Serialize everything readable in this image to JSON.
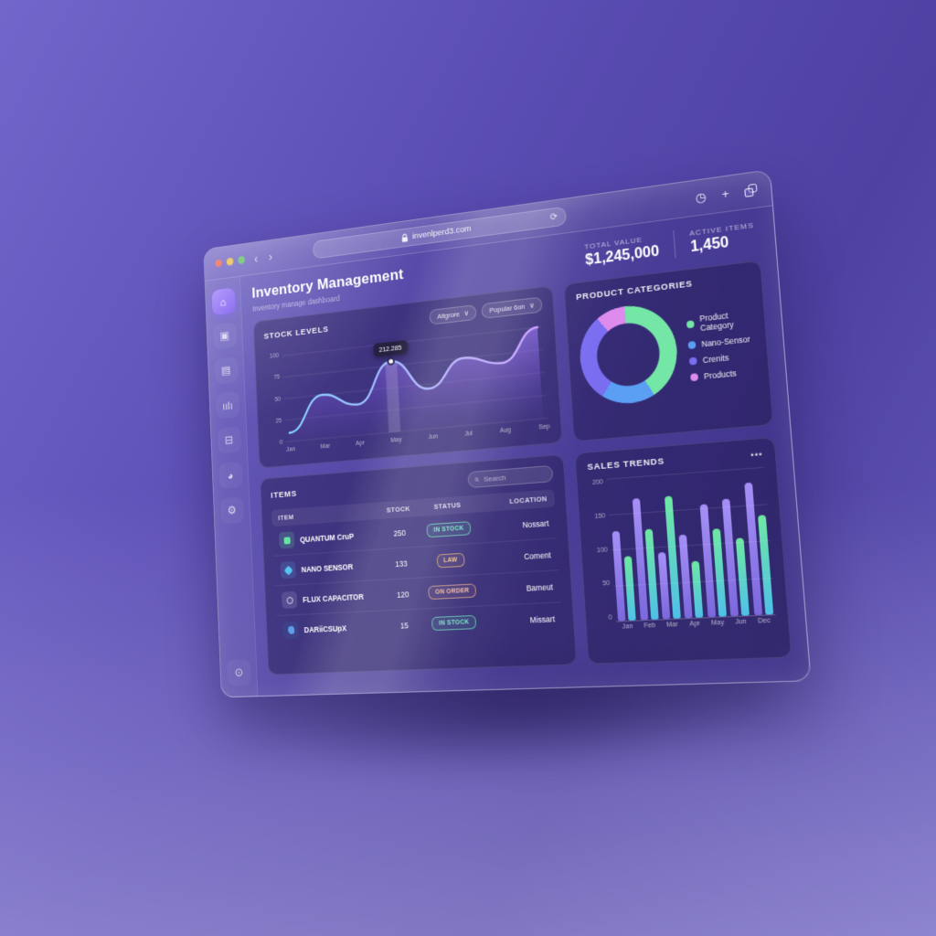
{
  "colors": {
    "accent_purple": "#8b5cf6",
    "bar_purple": "#8d7bea",
    "bar_green": "#6fe3a5",
    "line_blue": "#86d3ff",
    "line_violet": "#c79bff",
    "badge_in_stock": "#7aeac6",
    "badge_low": "#f2c184",
    "badge_on_order": "#f2b9a6"
  },
  "glyphs": {
    "back": "‹",
    "forward": "›",
    "reload": "⟳",
    "plus": "+",
    "history": "◷",
    "chevron_down": "∨",
    "menu": "•••"
  },
  "browser": {
    "url": "invenlperd3.com"
  },
  "sidebar": {
    "items": [
      {
        "name": "home",
        "icon": "home-icon",
        "glyph": "⌂",
        "active": true
      },
      {
        "name": "inventory",
        "icon": "box-icon",
        "glyph": "▣",
        "active": false
      },
      {
        "name": "orders",
        "icon": "clipboard-icon",
        "glyph": "▤",
        "active": false
      },
      {
        "name": "analytics",
        "icon": "bar-chart-icon",
        "glyph": "ıılı",
        "active": false
      },
      {
        "name": "files",
        "icon": "folder-icon",
        "glyph": "⊟",
        "active": false
      },
      {
        "name": "reports",
        "icon": "pie-chart-icon",
        "glyph": "◕",
        "active": false
      },
      {
        "name": "settings",
        "icon": "gear-icon",
        "glyph": "⚙",
        "active": false
      }
    ],
    "logout": {
      "icon": "logout-icon",
      "glyph": "⊙"
    }
  },
  "header": {
    "title": "Inventory Management",
    "subtitle": "Inventory manage dashboard",
    "stats": [
      {
        "label": "TOTAL VALUE",
        "value": "$1,245,000"
      },
      {
        "label": "ACTIVE ITEMS",
        "value": "1,450"
      }
    ]
  },
  "stock_panel": {
    "filters": [
      "Altgrore",
      "Popular 6on"
    ]
  },
  "items_panel": {
    "title": "ITEMS",
    "search_placeholder": "Search",
    "columns": [
      "ITEM",
      "STOCK",
      "STATUS",
      "LOCATION"
    ],
    "rows": [
      {
        "item": "QUANTUM CruP",
        "stock": "250",
        "status": "IN STOCK",
        "status_type": "in-stock",
        "location": "Nossart",
        "icon": "chip-icon",
        "icon_color": "#63e6a2",
        "tile_bg": "rgba(110,235,170,0.18)",
        "shape": "square"
      },
      {
        "item": "NANO SENSOR",
        "stock": "133",
        "status": "LAW",
        "status_type": "low",
        "location": "Coment",
        "icon": "diamond-icon",
        "icon_color": "#56c3f0",
        "tile_bg": "rgba(90,180,240,0.18)",
        "shape": "diamond"
      },
      {
        "item": "FLUX CAPACITOR",
        "stock": "120",
        "status": "ON ORDER",
        "status_type": "on-order",
        "location": "Bameut",
        "icon": "capacitor-icon",
        "icon_color": "#d8dcf2",
        "tile_bg": "rgba(220,225,245,0.14)",
        "shape": "ring"
      },
      {
        "item": "DARiiCSUpX",
        "stock": "15",
        "status": "IN STOCK",
        "status_type": "in-stock",
        "location": "Missart",
        "icon": "dark-box-icon",
        "icon_color": "#5f9fe8",
        "tile_bg": "rgba(60,80,150,0.40)",
        "shape": "blob"
      }
    ]
  },
  "chart_data": [
    {
      "type": "area",
      "title": "STOCK LEVELS",
      "x": [
        "Jan",
        "Mar",
        "Apr",
        "May",
        "Jun",
        "Jul",
        "Aug",
        "Sep"
      ],
      "values": [
        10,
        50,
        35,
        80,
        45,
        75,
        65,
        100
      ],
      "ylim": [
        0,
        100
      ],
      "yticks": [
        100,
        75,
        50,
        25,
        0
      ],
      "grid": true,
      "line_gradient": [
        "#86d3ff",
        "#c79bff"
      ],
      "tooltip": {
        "x": "May",
        "index": 3,
        "text": "212.285"
      }
    },
    {
      "type": "pie",
      "title": "PRODUCT CATEGORIES",
      "donut": true,
      "legend_position": "right",
      "slices": [
        {
          "label": "Product Category",
          "value": 42,
          "color": "#74e6a6"
        },
        {
          "label": "Nano-Sensor",
          "value": 18,
          "color": "#5b9ff5"
        },
        {
          "label": "Crenits",
          "value": 30,
          "color": "#7a6df0"
        },
        {
          "label": "Products",
          "value": 10,
          "color": "#dd8bec"
        }
      ]
    },
    {
      "type": "bar",
      "title": "SALES TRENDS",
      "categories": [
        "Jan",
        "Feb",
        "Mar",
        "Apr",
        "May",
        "Jun",
        "Dec"
      ],
      "series": [
        {
          "name": "purple",
          "color": "#8d7bea",
          "values": [
            125,
            170,
            92,
            115,
            155,
            160,
            180
          ]
        },
        {
          "name": "green",
          "color": "#6fe3a5",
          "values": [
            90,
            125,
            170,
            78,
            120,
            105,
            135
          ]
        }
      ],
      "ylim": [
        0,
        200
      ],
      "yticks": [
        200,
        150,
        100,
        50,
        0
      ],
      "grid": true,
      "legend_position": "none"
    }
  ]
}
